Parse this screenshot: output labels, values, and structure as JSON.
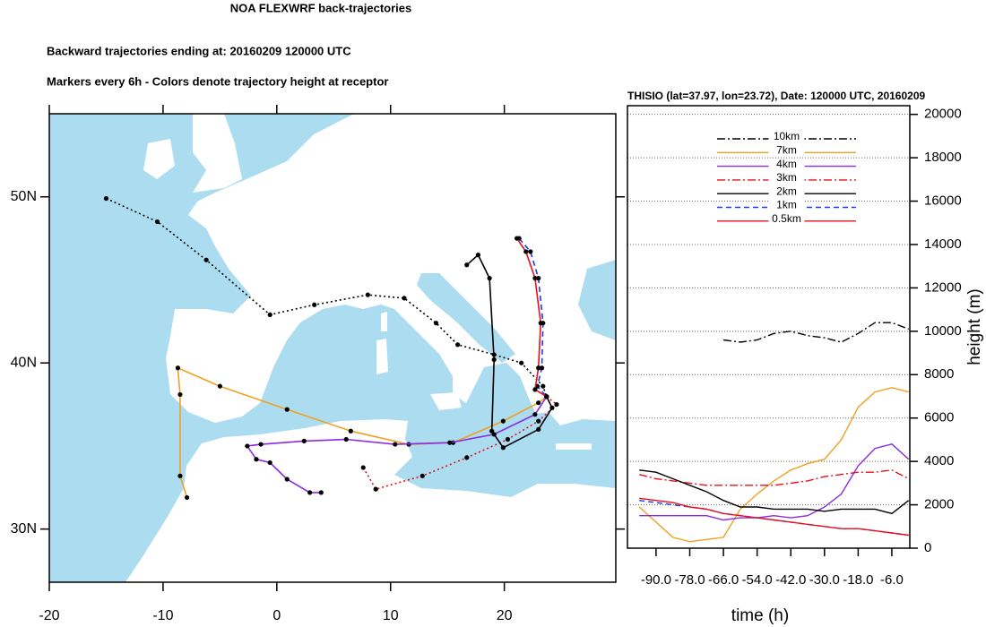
{
  "chart_data": [
    {
      "type": "map",
      "title": "NOA FLEXWRF back-trajectories",
      "subtitles": [
        "Backward trajectories ending at: 20160209  120000 UTC",
        "Markers every 6h - Colors denote trajectory height at receptor"
      ],
      "xlim": [
        -20,
        29.8
      ],
      "ylim": [
        26.8,
        55
      ],
      "xticks": [
        -20,
        -10,
        0,
        10,
        20
      ],
      "yticks": [
        {
          "value": 30,
          "label": "30N"
        },
        {
          "value": 40,
          "label": "40N"
        },
        {
          "value": 50,
          "label": "50N"
        }
      ],
      "sea_color": "#acdcf0",
      "land_color": "#ffffff",
      "series": [
        {
          "color": "#000000",
          "dash": "dotted",
          "x": [
            -15.0,
            -10.5,
            -6.2,
            -0.6,
            3.3,
            8.0,
            11.2,
            14.0,
            15.9,
            19.1,
            21.5,
            23.4,
            23.72
          ],
          "values": [
            49.9,
            48.5,
            46.2,
            42.9,
            43.5,
            44.1,
            43.9,
            42.4,
            41.1,
            40.5,
            40.0,
            38.6,
            37.97
          ]
        },
        {
          "color": "#f0a020",
          "dash": "solid",
          "x": [
            -7.9,
            -8.5,
            -8.5,
            -8.7,
            -5.0,
            0.9,
            6.5,
            11.6,
            15.5,
            19.9,
            23.0,
            23.72
          ],
          "values": [
            31.9,
            33.2,
            38.1,
            39.7,
            38.6,
            37.2,
            35.9,
            35.1,
            35.2,
            36.5,
            37.6,
            37.97
          ]
        },
        {
          "color": "#8a2be2",
          "dash": "solid",
          "x": [
            3.9,
            2.9,
            0.9,
            -0.6,
            -1.8,
            -2.6,
            -1.4,
            2.4,
            6.1,
            10.4,
            15.2,
            19.1,
            22.7,
            23.72
          ],
          "values": [
            32.2,
            32.2,
            33.0,
            34.0,
            34.2,
            35.0,
            35.1,
            35.3,
            35.4,
            35.1,
            35.2,
            35.7,
            36.9,
            37.97
          ]
        },
        {
          "color": "#e8101c",
          "dash": "dotted",
          "x": [
            7.6,
            8.7,
            12.8,
            16.7,
            20.3,
            23.0,
            24.6,
            23.72
          ],
          "values": [
            33.7,
            32.4,
            33.2,
            34.3,
            35.4,
            36.5,
            37.5,
            37.97
          ]
        },
        {
          "color": "#000000",
          "dash": "solid",
          "x": [
            16.7,
            17.7,
            18.7,
            19.1,
            18.9,
            19.9,
            23.0,
            24.2,
            23.72
          ],
          "values": [
            45.9,
            46.5,
            45.1,
            40.2,
            35.9,
            34.9,
            36.0,
            37.3,
            37.97
          ]
        },
        {
          "color": "#1a3cf0",
          "dash": "dashed",
          "x": [
            21.3,
            22.3,
            23.0,
            23.4,
            23.3,
            22.9,
            23.72
          ],
          "values": [
            47.5,
            46.7,
            45.1,
            42.4,
            39.7,
            38.6,
            37.97
          ]
        },
        {
          "color": "#e8101c",
          "dash": "solid",
          "x": [
            21.1,
            21.9,
            22.7,
            23.2,
            23.0,
            22.7,
            23.72
          ],
          "values": [
            47.5,
            46.7,
            45.1,
            42.4,
            39.7,
            38.4,
            37.97
          ]
        }
      ]
    },
    {
      "type": "line",
      "title": "THISIO (lat=37.97,  lon=23.72), Date: 120000 UTC, 20160209",
      "xlabel": "time (h)",
      "ylabel": "height (m)",
      "xlim": [
        -100.2,
        0.4
      ],
      "ylim": [
        0,
        20400
      ],
      "xticks": [
        {
          "value": -90,
          "label": "-90.0"
        },
        {
          "value": -78,
          "label": "-78.0"
        },
        {
          "value": -66,
          "label": "-66.0"
        },
        {
          "value": -54,
          "label": "-54.0"
        },
        {
          "value": -42,
          "label": "-42.0"
        },
        {
          "value": -30,
          "label": "-30.0"
        },
        {
          "value": -18,
          "label": "-18.0"
        },
        {
          "value": -6,
          "label": "-6.0"
        }
      ],
      "yticks": [
        0,
        2000,
        4000,
        6000,
        8000,
        10000,
        12000,
        14000,
        16000,
        18000,
        20000
      ],
      "grid": true,
      "legend": "top",
      "x": [
        -96,
        -90,
        -84,
        -78,
        -72,
        -66,
        -60,
        -54,
        -48,
        -42,
        -36,
        -30,
        -24,
        -18,
        -12,
        -6,
        0
      ],
      "series": [
        {
          "name": "10km",
          "color": "#000000",
          "dash": "dashdot",
          "values": [
            null,
            null,
            null,
            null,
            null,
            9600,
            9500,
            9600,
            9900,
            10000,
            9800,
            9700,
            9500,
            9900,
            10400,
            10400,
            10100
          ]
        },
        {
          "name": "7km",
          "color": "#f0a020",
          "dash": "solid",
          "values": [
            1900,
            1200,
            500,
            300,
            400,
            500,
            1800,
            2500,
            3100,
            3600,
            3900,
            4100,
            5000,
            6500,
            7200,
            7400,
            7200
          ]
        },
        {
          "name": "4km",
          "color": "#8a2be2",
          "dash": "solid",
          "values": [
            1500,
            1500,
            1500,
            1500,
            1500,
            1300,
            1400,
            1400,
            1500,
            1400,
            1500,
            1900,
            2500,
            3800,
            4600,
            4800,
            4100
          ]
        },
        {
          "name": "3km",
          "color": "#e8101c",
          "dash": "dashdot",
          "values": [
            3400,
            3200,
            3100,
            3000,
            2900,
            2900,
            2900,
            2900,
            2900,
            3000,
            3100,
            3300,
            3400,
            3500,
            3500,
            3600,
            3200
          ]
        },
        {
          "name": "2km",
          "color": "#000000",
          "dash": "solid",
          "values": [
            3600,
            3500,
            3200,
            2900,
            2600,
            2200,
            1900,
            1900,
            1800,
            1800,
            1800,
            1700,
            1800,
            1800,
            1800,
            1600,
            2200
          ]
        },
        {
          "name": "1km",
          "color": "#1a3cf0",
          "dash": "dashed",
          "values": [
            2200,
            2100,
            2000,
            1900,
            1800,
            1600,
            1500,
            1400,
            1300,
            1200,
            1100,
            1000,
            900,
            900,
            800,
            700,
            600
          ]
        },
        {
          "name": "0.5km",
          "color": "#e8101c",
          "dash": "solid",
          "values": [
            2300,
            2200,
            2100,
            1900,
            1800,
            1600,
            1500,
            1400,
            1300,
            1200,
            1100,
            1000,
            900,
            900,
            800,
            700,
            600
          ]
        }
      ]
    }
  ]
}
